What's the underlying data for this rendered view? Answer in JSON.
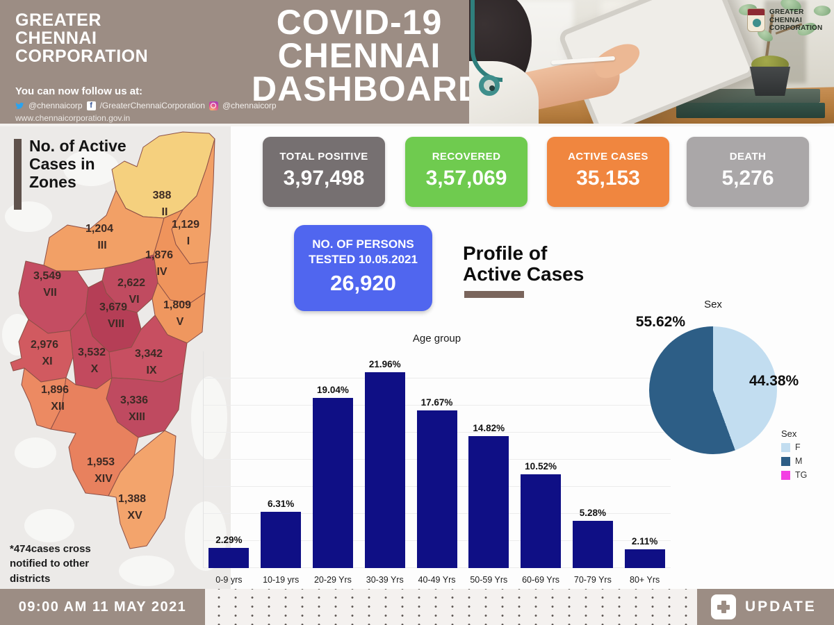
{
  "header": {
    "org_name_line1": "GREATER",
    "org_name_line2": "CHENNAI",
    "org_name_line3": "CORPORATION",
    "title_line1": "COVID-19",
    "title_line2": "CHENNAI",
    "title_line3": "DASHBOARD",
    "follow_text": "You can now follow us at:",
    "twitter_handle": "@chennaicorp",
    "facebook_handle": "/GreaterChennaiCorporation",
    "instagram_handle": "@chennaicorp",
    "website": "www.chennaicorporation.gov.in",
    "photo_logo_line1": "GREATER",
    "photo_logo_line2": "CHENNAI",
    "photo_logo_line3": "CORPORATION"
  },
  "stats": [
    {
      "label": "TOTAL POSITIVE",
      "value": "3,97,498",
      "color": "#767071"
    },
    {
      "label": "RECOVERED",
      "value": "3,57,069",
      "color": "#6fcb4f"
    },
    {
      "label": "ACTIVE CASES",
      "value": "35,153",
      "color": "#f0863f"
    },
    {
      "label": "DEATH",
      "value": "5,276",
      "color": "#aaa7a8"
    }
  ],
  "tested_card": {
    "label_line1": "NO. OF PERSONS",
    "label_line2": "TESTED 10.05.2021",
    "value": "26,920",
    "color": "#5066ef"
  },
  "profile_heading": {
    "line1": "Profile of",
    "line2": "Active Cases"
  },
  "map_panel": {
    "title_line1": "No. of Active",
    "title_line2": "Cases in",
    "title_line3": "Zones",
    "note_line1": "*474cases cross",
    "note_line2": "notified to other",
    "note_line3": "districts",
    "zones": [
      {
        "zone": "I",
        "value": "1,129",
        "color": "#f2a066"
      },
      {
        "zone": "II",
        "value": "388",
        "color": "#f5d07e"
      },
      {
        "zone": "III",
        "value": "1,204",
        "color": "#f2a066"
      },
      {
        "zone": "IV",
        "value": "1,876",
        "color": "#ef945c"
      },
      {
        "zone": "V",
        "value": "1,809",
        "color": "#ef975f"
      },
      {
        "zone": "VI",
        "value": "2,622",
        "color": "#c04b60"
      },
      {
        "zone": "VII",
        "value": "3,549",
        "color": "#c44d62"
      },
      {
        "zone": "VIII",
        "value": "3,679",
        "color": "#b53e56"
      },
      {
        "zone": "IX",
        "value": "3,342",
        "color": "#c74f61"
      },
      {
        "zone": "X",
        "value": "3,532",
        "color": "#c24a5e"
      },
      {
        "zone": "XI",
        "value": "2,976",
        "color": "#d15a60"
      },
      {
        "zone": "XII",
        "value": "1,896",
        "color": "#ec8a62"
      },
      {
        "zone": "XIII",
        "value": "3,336",
        "color": "#bf4a60"
      },
      {
        "zone": "XIV",
        "value": "1,953",
        "color": "#e8815e"
      },
      {
        "zone": "XV",
        "value": "1,388",
        "color": "#f3a46c"
      }
    ]
  },
  "chart_data": [
    {
      "type": "bar",
      "title": "Age group",
      "categories": [
        "0-9 yrs",
        "10-19 yrs",
        "20-29 Yrs",
        "30-39 Yrs",
        "40-49 Yrs",
        "50-59 Yrs",
        "60-69 Yrs",
        "70-79 Yrs",
        "80+ Yrs"
      ],
      "values": [
        2.29,
        6.31,
        19.04,
        21.96,
        17.67,
        14.82,
        10.52,
        5.28,
        2.11
      ],
      "data_labels": [
        "2.29%",
        "6.31%",
        "19.04%",
        "21.96%",
        "17.67%",
        "14.82%",
        "10.52%",
        "5.28%",
        "2.11%"
      ],
      "bar_color": "#0f0f85",
      "xlabel": "",
      "ylabel": "",
      "ylim": [
        0,
        24
      ],
      "grid": true,
      "legend_position": "none"
    },
    {
      "type": "pie",
      "title": "Sex",
      "legend_title": "Sex",
      "slices": [
        {
          "label": "F",
          "value": 44.38,
          "display": "44.38%",
          "color": "#c2ddf0"
        },
        {
          "label": "M",
          "value": 55.62,
          "display": "55.62%",
          "color": "#2d5e86"
        },
        {
          "label": "TG",
          "value": 0,
          "display": "",
          "color": "#f33fe3"
        }
      ],
      "legend_position": "bottom-right"
    }
  ],
  "footer": {
    "timestamp": "09:00 AM 11 MAY 2021",
    "update_label": "UPDATE"
  }
}
